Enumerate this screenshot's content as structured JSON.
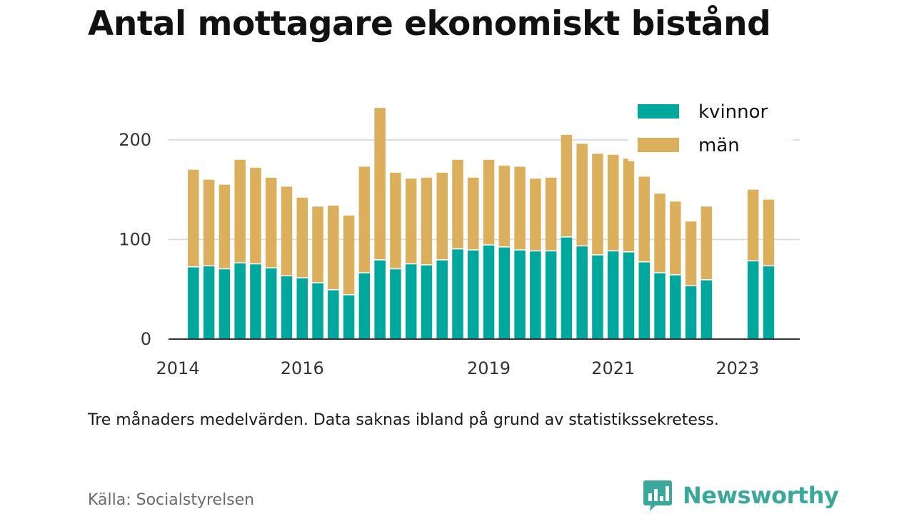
{
  "title": "Antal mottagare ekonomiskt bistånd",
  "note": "Tre månaders medelvärden. Data saknas ibland på grund av statistikssekretess.",
  "source": "Källa: Socialstyrelsen",
  "brand": {
    "name": "Newsworthy"
  },
  "colors": {
    "kvinnor": "#00a79d",
    "man": "#dcaf5c",
    "grid": "#dddddd",
    "axis": "#333333",
    "text": "#333333"
  },
  "chart_data": {
    "type": "bar",
    "stacked": true,
    "title": "Antal mottagare ekonomiskt bistånd",
    "xlabel": "",
    "ylabel": "",
    "ylim": [
      0,
      240
    ],
    "yticks": [
      0,
      100,
      200
    ],
    "xlim": [
      2013.85,
      2024.0
    ],
    "xticks": [
      2014,
      2016,
      2019,
      2021,
      2023
    ],
    "legend": "top-right",
    "grid": true,
    "x": [
      2014.25,
      2014.5,
      2014.75,
      2015.0,
      2015.25,
      2015.5,
      2015.75,
      2016.0,
      2016.25,
      2016.5,
      2016.75,
      2017.0,
      2017.25,
      2017.5,
      2017.75,
      2018.0,
      2018.25,
      2018.5,
      2018.75,
      2019.0,
      2019.25,
      2019.5,
      2019.75,
      2020.0,
      2020.25,
      2020.5,
      2020.75,
      2021.0,
      2021.25,
      2021.5,
      2021.75,
      2022.0,
      2022.25,
      2022.5,
      2023.25,
      2023.5
    ],
    "series": [
      {
        "name": "kvinnor",
        "values": [
          72,
          73,
          70,
          76,
          75,
          71,
          63,
          61,
          56,
          49,
          44,
          66,
          79,
          70,
          75,
          74,
          79,
          90,
          89,
          94,
          92,
          89,
          88,
          88,
          102,
          93,
          84,
          88,
          87,
          77,
          66,
          64,
          53,
          59,
          78,
          73
        ]
      },
      {
        "name": "män",
        "values": [
          98,
          87,
          85,
          104,
          97,
          91,
          90,
          81,
          77,
          85,
          80,
          107,
          153,
          97,
          86,
          88,
          88,
          90,
          73,
          86,
          82,
          84,
          73,
          74,
          103,
          103,
          102,
          97,
          94,
          86,
          80,
          74,
          65,
          74,
          72,
          67
        ]
      }
    ]
  }
}
